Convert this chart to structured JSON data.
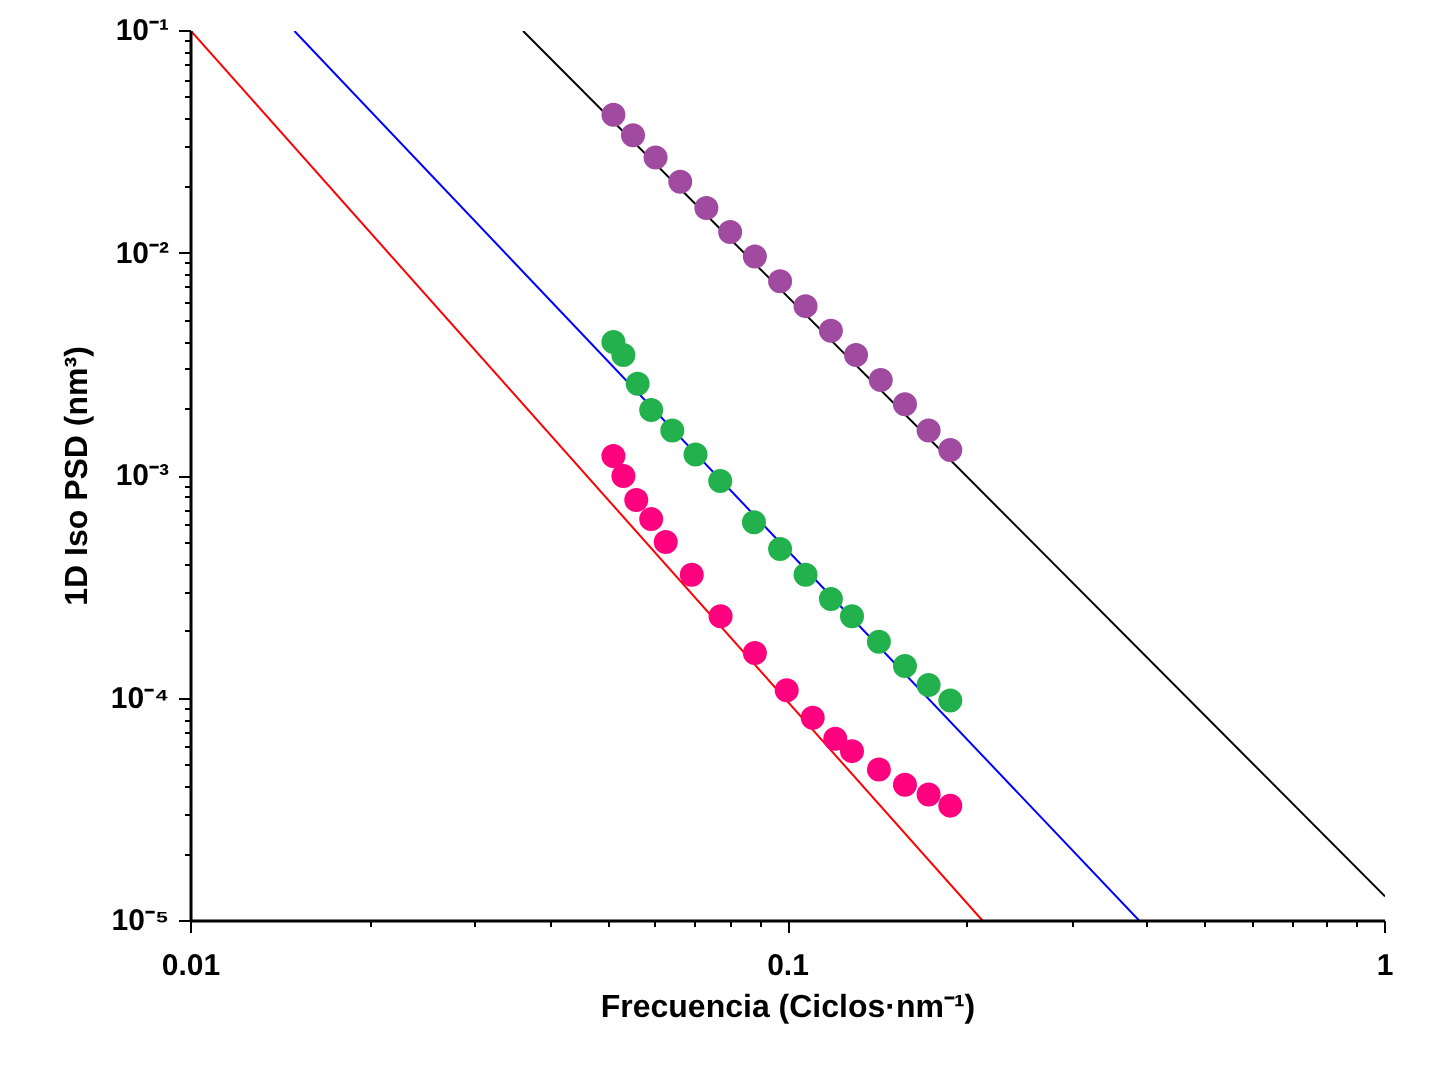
{
  "chart_data": {
    "type": "scatter",
    "xlabel": "Frecuencia (Ciclos·nm⁻¹)",
    "ylabel": "1D Iso PSD (nm³)",
    "log": "xy",
    "grid": false,
    "marker": "circle",
    "xlim": [
      0.01,
      1
    ],
    "ylim": [
      1e-05,
      0.1
    ],
    "xticks": [
      0.01,
      0.1,
      1
    ],
    "yticks": [
      {
        "value": 1e-05,
        "label": "10⁻⁵"
      },
      {
        "value": 0.0001,
        "label": "10⁻⁴"
      },
      {
        "value": 0.001,
        "label": "10⁻³"
      },
      {
        "value": 0.01,
        "label": "10⁻²"
      },
      {
        "value": 0.1,
        "label": "10⁻¹"
      }
    ],
    "series": [
      {
        "type": "line",
        "color": "#ff0000",
        "marker": "none",
        "x": [
          0.01,
          0.212
        ],
        "values": [
          0.1,
          1e-05
        ]
      },
      {
        "type": "line",
        "color": "#0000ff",
        "marker": "none",
        "x": [
          0.0149,
          0.388
        ],
        "values": [
          0.1,
          1e-05
        ]
      },
      {
        "type": "line",
        "color": "#000000",
        "marker": "none",
        "x": [
          0.036,
          1
        ],
        "values": [
          0.1,
          1.29e-05
        ]
      },
      {
        "color": "#a04aa0",
        "x": [
          0.051,
          0.055,
          0.06,
          0.066,
          0.073,
          0.08,
          0.088,
          0.097,
          0.107,
          0.118,
          0.13,
          0.143,
          0.157,
          0.172,
          0.187
        ],
        "values": [
          0.042,
          0.034,
          0.027,
          0.021,
          0.016,
          0.0125,
          0.0097,
          0.0075,
          0.0058,
          0.0045,
          0.0035,
          0.0027,
          0.0021,
          0.0016,
          0.00131
        ]
      },
      {
        "color": "#22b14c",
        "x": [
          0.051,
          0.053,
          0.056,
          0.059,
          0.064,
          0.07,
          0.077,
          0.0877,
          0.097,
          0.107,
          0.118,
          0.128,
          0.142,
          0.157,
          0.172,
          0.187
        ],
        "values": [
          0.004,
          0.0035,
          0.0026,
          0.00198,
          0.0016,
          0.00125,
          0.00095,
          0.00062,
          0.00047,
          0.00036,
          0.00028,
          0.000234,
          0.00018,
          0.00014,
          0.000115,
          9.8e-05
        ]
      },
      {
        "color": "#ff007f",
        "x": [
          0.051,
          0.053,
          0.0557,
          0.059,
          0.0624,
          0.069,
          0.0771,
          0.088,
          0.0995,
          0.11,
          0.12,
          0.128,
          0.142,
          0.157,
          0.172,
          0.187
        ],
        "values": [
          0.00123,
          0.001,
          0.00078,
          0.00064,
          0.000505,
          0.00036,
          0.000234,
          0.00016,
          0.000109,
          8.2e-05,
          6.6e-05,
          5.8e-05,
          4.8e-05,
          4.1e-05,
          3.7e-05,
          3.3e-05
        ]
      }
    ]
  }
}
